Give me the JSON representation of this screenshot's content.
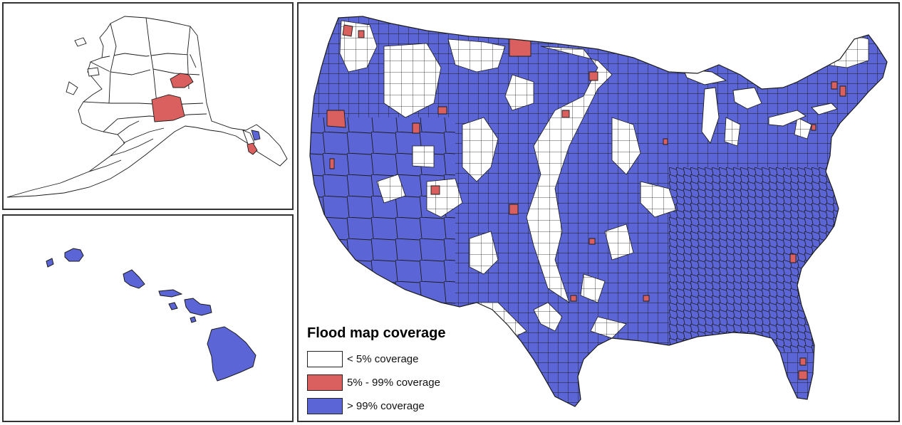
{
  "legend": {
    "title": "Flood map coverage",
    "items": [
      {
        "label": "< 5% coverage",
        "color": "#ffffff"
      },
      {
        "label": "5% - 99% coverage",
        "color": "#d9605e"
      },
      {
        "label": "> 99% coverage",
        "color": "#5b65d6"
      }
    ]
  },
  "panels": [
    {
      "name": "Alaska",
      "dominant": "< 5% coverage"
    },
    {
      "name": "Hawaii",
      "dominant": "> 99% coverage"
    },
    {
      "name": "Contiguous United States",
      "dominant": "mixed"
    }
  ],
  "colors": {
    "low": "#ffffff",
    "partial": "#d9605e",
    "full": "#5b65d6",
    "border": "#1a1a1a"
  }
}
